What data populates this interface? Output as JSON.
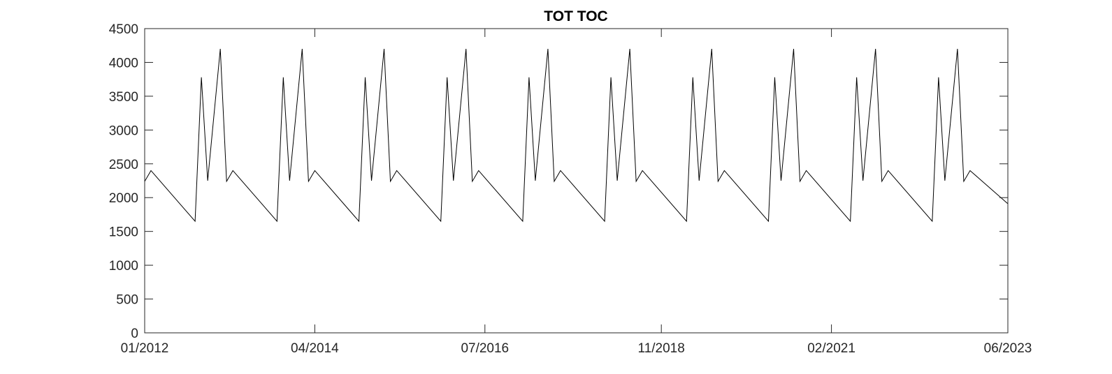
{
  "chart_data": {
    "type": "line",
    "title": "TOT TOC",
    "xlabel": "",
    "ylabel": "",
    "xlim": [
      "2012-01",
      "2023-06"
    ],
    "ylim": [
      0,
      4500
    ],
    "x_ticks": [
      "01/2012",
      "04/2014",
      "07/2016",
      "11/2018",
      "02/2021",
      "06/2023"
    ],
    "y_ticks": [
      0,
      500,
      1000,
      1500,
      2000,
      2500,
      3000,
      3500,
      4000,
      4500
    ],
    "grid": false,
    "legend": null,
    "line_color": "#000000",
    "series": [
      {
        "x": [
          "2012-01",
          "2012-02",
          "2012-09",
          "2012-10",
          "2012-11",
          "2013-01",
          "2013-02",
          "2013-03",
          "2013-10",
          "2013-11",
          "2013-12",
          "2014-02",
          "2014-03",
          "2014-04",
          "2014-11",
          "2014-12",
          "2015-01",
          "2015-03",
          "2015-04",
          "2015-05",
          "2015-12",
          "2016-01",
          "2016-02",
          "2016-04",
          "2016-05",
          "2016-06",
          "2017-01",
          "2017-02",
          "2017-03",
          "2017-05",
          "2017-06",
          "2017-07",
          "2018-02",
          "2018-03",
          "2018-04",
          "2018-06",
          "2018-07",
          "2018-08",
          "2019-03",
          "2019-04",
          "2019-05",
          "2019-07",
          "2019-08",
          "2019-09",
          "2020-04",
          "2020-05",
          "2020-06",
          "2020-08",
          "2020-09",
          "2020-10",
          "2021-05",
          "2021-06",
          "2021-07",
          "2021-09",
          "2021-10",
          "2021-11",
          "2022-06",
          "2022-07",
          "2022-08",
          "2022-10",
          "2022-11",
          "2022-12",
          "2023-06"
        ],
        "values": [
          2240,
          2400,
          1650,
          3780,
          2250,
          4200,
          2240,
          2400,
          1650,
          3780,
          2250,
          4200,
          2240,
          2400,
          1650,
          3780,
          2250,
          4200,
          2240,
          2400,
          1650,
          3780,
          2250,
          4200,
          2240,
          2400,
          1650,
          3780,
          2250,
          4200,
          2240,
          2400,
          1650,
          3780,
          2250,
          4200,
          2240,
          2400,
          1650,
          3780,
          2250,
          4200,
          2240,
          2400,
          1650,
          3780,
          2250,
          4200,
          2240,
          2400,
          1650,
          3780,
          2250,
          4200,
          2240,
          2400,
          1650,
          3780,
          2250,
          4200,
          2240,
          2400,
          1910
        ]
      }
    ]
  }
}
